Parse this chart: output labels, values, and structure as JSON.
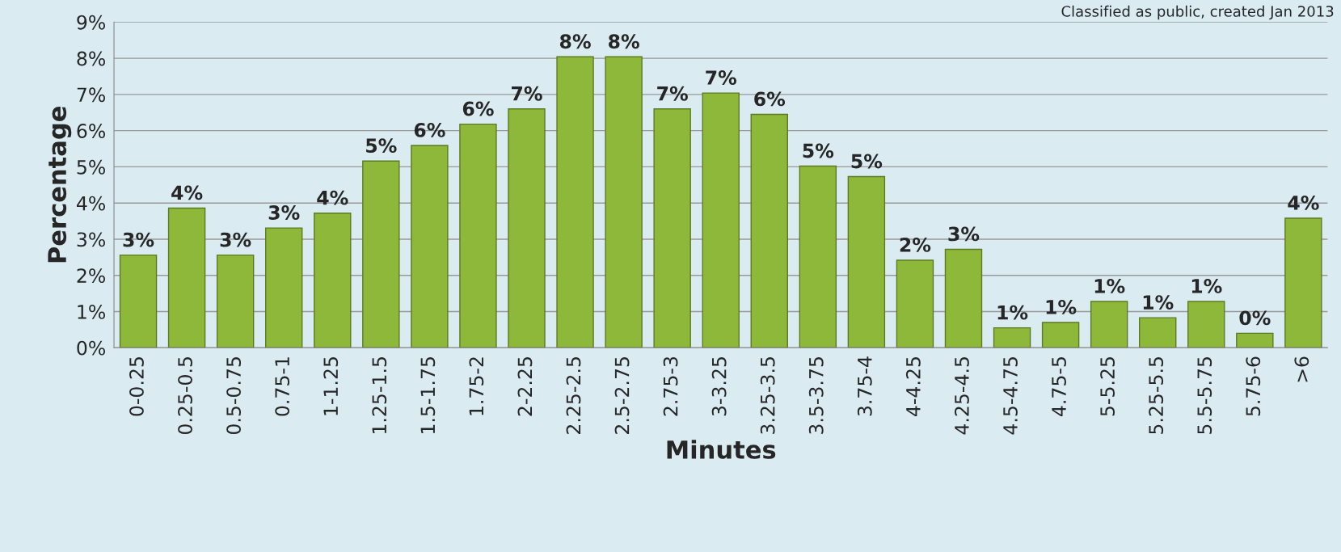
{
  "chart_data": {
    "type": "bar",
    "xlabel": "Minutes",
    "ylabel": "Percentage",
    "categories": [
      "0-0.25",
      "0.25-0.5",
      "0.5-0.75",
      "0.75-1",
      "1-1.25",
      "1.25-1.5",
      "1.5-1.75",
      "1.75-2",
      "2-2.25",
      "2.25-2.5",
      "2.5-2.75",
      "2.75-3",
      "3-3.25",
      "3.25-3.5",
      "3.5-3.75",
      "3.75-4",
      "4-4.25",
      "4.25-4.5",
      "4.5-4.75",
      "4.75-5",
      "5-5.25",
      "5.25-5.5",
      "5.5-5.75",
      "5.75-6",
      ">6"
    ],
    "values": [
      2.56,
      3.86,
      2.56,
      3.31,
      3.72,
      5.16,
      5.59,
      6.18,
      6.6,
      8.04,
      8.04,
      6.6,
      7.04,
      6.45,
      5.02,
      4.73,
      2.42,
      2.72,
      0.55,
      0.7,
      1.28,
      0.83,
      1.28,
      0.4,
      3.58
    ],
    "value_labels": [
      "3%",
      "4%",
      "3%",
      "3%",
      "4%",
      "5%",
      "6%",
      "6%",
      "7%",
      "8%",
      "8%",
      "7%",
      "7%",
      "6%",
      "5%",
      "5%",
      "2%",
      "3%",
      "1%",
      "1%",
      "1%",
      "1%",
      "1%",
      "0%",
      "4%"
    ],
    "color": "#8db83a",
    "ylim": [
      0,
      9
    ],
    "yticks": [
      {
        "value": 0,
        "label": "0%"
      },
      {
        "value": 1,
        "label": "1%"
      },
      {
        "value": 2,
        "label": "2%"
      },
      {
        "value": 3,
        "label": "3%"
      },
      {
        "value": 4,
        "label": "4%"
      },
      {
        "value": 5,
        "label": "5%"
      },
      {
        "value": 6,
        "label": "6%"
      },
      {
        "value": 7,
        "label": "7%"
      },
      {
        "value": 8,
        "label": "8%"
      },
      {
        "value": 9,
        "label": "9%"
      }
    ],
    "grid": "y",
    "annotations": [
      "Classified as public, created Jan 2013"
    ]
  }
}
